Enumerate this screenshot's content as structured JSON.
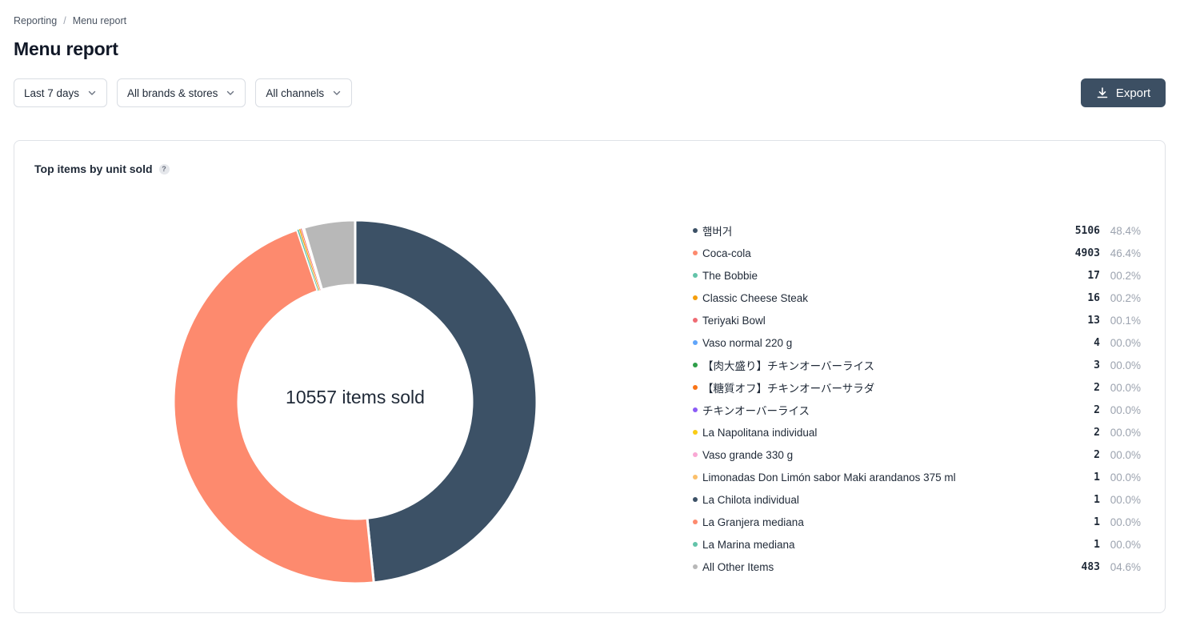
{
  "breadcrumb": {
    "parent": "Reporting",
    "separator": "/",
    "current": "Menu report"
  },
  "page_title": "Menu report",
  "filters": {
    "date": "Last 7 days",
    "brands": "All brands & stores",
    "channels": "All channels"
  },
  "export_label": "Export",
  "card": {
    "title": "Top items by unit sold",
    "help": "?",
    "center_label": "10557 items sold"
  },
  "chart_data": {
    "type": "pie",
    "title": "Top items by unit sold",
    "total": 10557,
    "center_text": "10557 items sold",
    "series": [
      {
        "name": "햄버거",
        "value": 5106,
        "percent": "48.4%",
        "color": "#3c5166"
      },
      {
        "name": "Coca-cola",
        "value": 4903,
        "percent": "46.4%",
        "color": "#fd8a6e"
      },
      {
        "name": "The Bobbie",
        "value": 17,
        "percent": "00.2%",
        "color": "#63c3a9"
      },
      {
        "name": "Classic Cheese Steak",
        "value": 16,
        "percent": "00.2%",
        "color": "#f59e0b"
      },
      {
        "name": "Teriyaki Bowl",
        "value": 13,
        "percent": "00.1%",
        "color": "#ef6b73"
      },
      {
        "name": "Vaso normal 220 g",
        "value": 4,
        "percent": "00.0%",
        "color": "#60a5fa"
      },
      {
        "name": "【肉大盛り】チキンオーバーライス",
        "value": 3,
        "percent": "00.0%",
        "color": "#2e9e48"
      },
      {
        "name": "【糖質オフ】チキンオーバーサラダ",
        "value": 2,
        "percent": "00.0%",
        "color": "#f97316"
      },
      {
        "name": "チキンオーバーライス",
        "value": 2,
        "percent": "00.0%",
        "color": "#8b5cf6"
      },
      {
        "name": "La Napolitana individual",
        "value": 2,
        "percent": "00.0%",
        "color": "#facc15"
      },
      {
        "name": "Vaso grande 330 g",
        "value": 2,
        "percent": "00.0%",
        "color": "#f9a8d4"
      },
      {
        "name": "Limonadas Don Limón sabor Maki arandanos 375 ml",
        "value": 1,
        "percent": "00.0%",
        "color": "#fbbf6a"
      },
      {
        "name": "La Chilota individual",
        "value": 1,
        "percent": "00.0%",
        "color": "#3c5166"
      },
      {
        "name": "La Granjera mediana",
        "value": 1,
        "percent": "00.0%",
        "color": "#fd8a6e"
      },
      {
        "name": "La Marina mediana",
        "value": 1,
        "percent": "00.0%",
        "color": "#63c3a9"
      },
      {
        "name": "All Other Items",
        "value": 483,
        "percent": "04.6%",
        "color": "#b8b8b8"
      }
    ]
  }
}
